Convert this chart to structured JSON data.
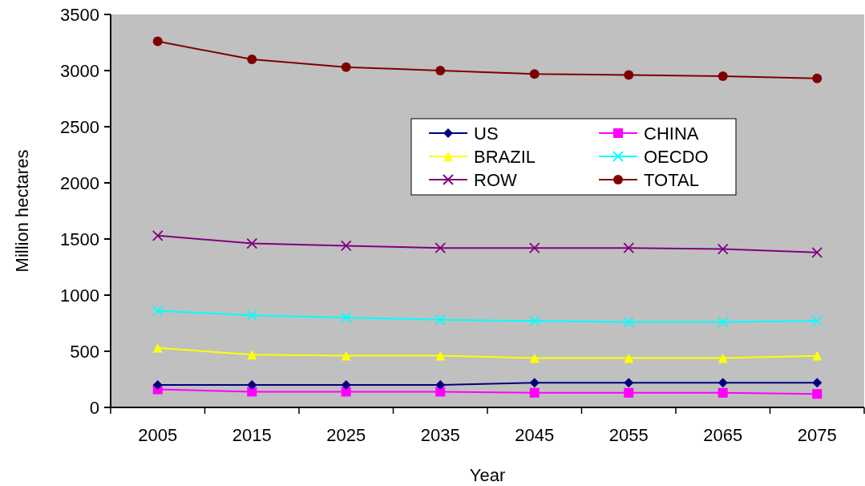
{
  "chart_data": {
    "type": "line",
    "xlabel": "Year",
    "ylabel": "Million hectares",
    "categories": [
      "2005",
      "2015",
      "2025",
      "2035",
      "2045",
      "2055",
      "2065",
      "2075"
    ],
    "ylim": [
      0,
      3500
    ],
    "yticks": [
      0,
      500,
      1000,
      1500,
      2000,
      2500,
      3000,
      3500
    ],
    "grid": false,
    "legend": "top right",
    "series": [
      {
        "name": "US",
        "color": "#000080",
        "marker": "diamond",
        "values": [
          200,
          200,
          200,
          200,
          220,
          220,
          220,
          220
        ]
      },
      {
        "name": "CHINA",
        "color": "#ff00ff",
        "marker": "square",
        "values": [
          160,
          140,
          140,
          140,
          130,
          130,
          130,
          120
        ]
      },
      {
        "name": "BRAZIL",
        "color": "#ffff00",
        "marker": "triangle",
        "values": [
          530,
          470,
          460,
          460,
          440,
          440,
          440,
          460
        ]
      },
      {
        "name": "OECDO",
        "color": "#00ffff",
        "marker": "cross",
        "values": [
          860,
          820,
          800,
          780,
          770,
          760,
          760,
          770
        ]
      },
      {
        "name": "ROW",
        "color": "#800080",
        "marker": "cross",
        "values": [
          1530,
          1460,
          1440,
          1420,
          1420,
          1420,
          1410,
          1380
        ]
      },
      {
        "name": "TOTAL",
        "color": "#800000",
        "marker": "circle",
        "values": [
          3260,
          3100,
          3030,
          3000,
          2970,
          2960,
          2950,
          2930
        ]
      }
    ]
  }
}
